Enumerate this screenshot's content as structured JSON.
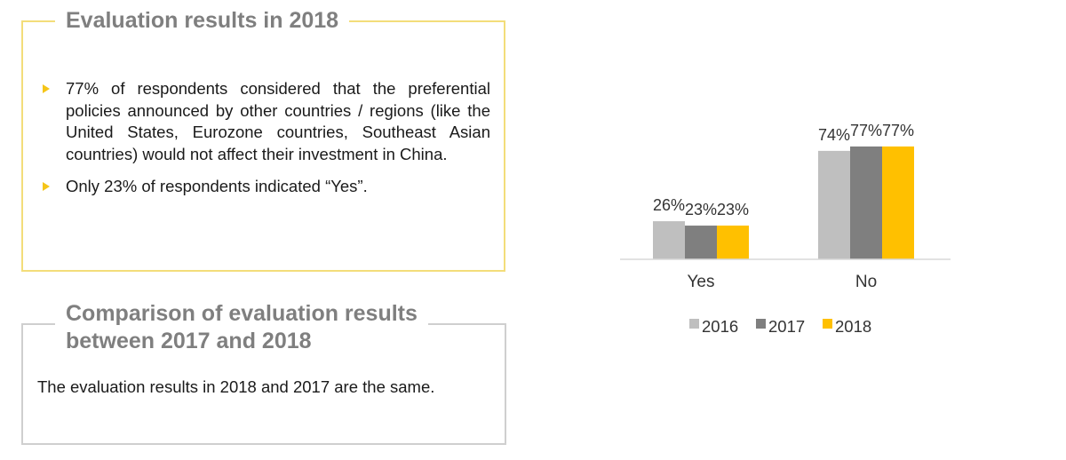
{
  "panel1": {
    "title": "Evaluation results in 2018",
    "bullets": [
      "77% of respondents considered that the preferential policies announced by other countries / regions (like the United States, Eurozone countries, Southeast Asian countries) would not affect their investment in China.",
      "Only 23% of respondents indicated “Yes”."
    ]
  },
  "panel2": {
    "title_line1": "Comparison of evaluation results",
    "title_line2": "between 2017 and 2018",
    "body": "The evaluation results in 2018 and 2017 are the same."
  },
  "chart_data": {
    "type": "bar",
    "categories": [
      "Yes",
      "No"
    ],
    "series": [
      {
        "name": "2016",
        "values": [
          26,
          74
        ],
        "labels": [
          "26%",
          "74%"
        ],
        "color": "#bfbfbf"
      },
      {
        "name": "2017",
        "values": [
          23,
          77
        ],
        "labels": [
          "23%",
          "77%"
        ],
        "color": "#7f7f7f"
      },
      {
        "name": "2018",
        "values": [
          23,
          77
        ],
        "labels": [
          "23%",
          "77%"
        ],
        "color": "#ffc000"
      }
    ],
    "ylim": [
      0,
      100
    ],
    "grid": false,
    "legend": "bottom"
  }
}
